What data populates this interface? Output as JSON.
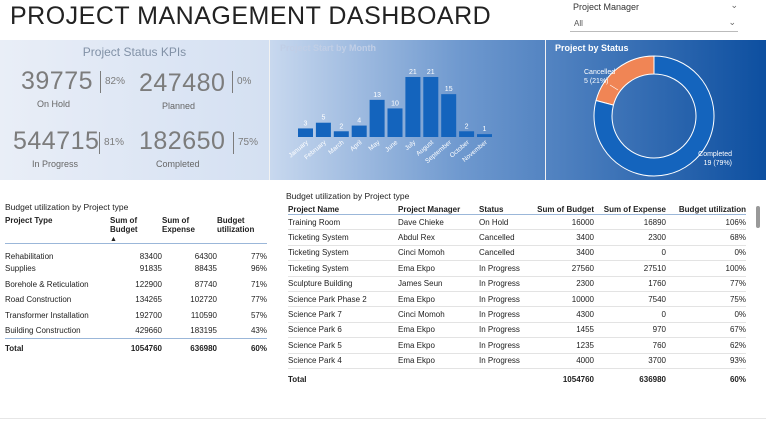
{
  "title": "PROJECT MANAGEMENT DASHBOARD",
  "slicer": {
    "label": "Project Manager",
    "value": "All"
  },
  "kpi": {
    "title": "Project Status KPIs",
    "items": [
      {
        "value": "39775",
        "pct": "82%",
        "label": "On Hold"
      },
      {
        "value": "247480",
        "pct": "0%",
        "label": "Planned"
      },
      {
        "value": "544715",
        "pct": "81%",
        "label": "In Progress"
      },
      {
        "value": "182650",
        "pct": "75%",
        "label": "Completed"
      }
    ]
  },
  "chart_data": [
    {
      "type": "bar",
      "title": "Project Start by Month",
      "categories": [
        "January",
        "February",
        "March",
        "April",
        "May",
        "June",
        "July",
        "August",
        "September",
        "October",
        "November"
      ],
      "values": [
        3,
        5,
        2,
        4,
        13,
        10,
        21,
        21,
        15,
        2,
        1
      ],
      "color": "#1464bd"
    },
    {
      "type": "pie",
      "title": "Project by Status",
      "slices": [
        {
          "name": "Cancelled",
          "value": 5,
          "label": "5 (21%)",
          "color": "#f08555"
        },
        {
          "name": "Completed",
          "value": 19,
          "label": "19 (79%)",
          "color": "#1464bd"
        }
      ]
    }
  ],
  "table1": {
    "title": "Budget utilization by Project type",
    "headers": [
      "Project Type",
      "Sum of Budget",
      "Sum of Expense",
      "Budget utilization"
    ],
    "rows": [
      [
        "Rehabilitation",
        "83400",
        "64300",
        "77%"
      ],
      [
        "Supplies",
        "91835",
        "88435",
        "96%"
      ],
      [
        "Borehole & Reticulation",
        "122900",
        "87740",
        "71%"
      ],
      [
        "Road Construction",
        "134265",
        "102720",
        "77%"
      ],
      [
        "Transformer Installation",
        "192700",
        "110590",
        "57%"
      ],
      [
        "Building Construction",
        "429660",
        "183195",
        "43%"
      ]
    ],
    "total": [
      "Total",
      "1054760",
      "636980",
      "60%"
    ]
  },
  "table2": {
    "title": "Budget utilization by Project type",
    "headers": [
      "Project Name",
      "Project Manager",
      "Status",
      "Sum of Budget",
      "Sum of Expense",
      "Budget utilization"
    ],
    "rows": [
      [
        "Training Room",
        "Dave Chieke",
        "On Hold",
        "16000",
        "16890",
        "106%"
      ],
      [
        "Ticketing System",
        "Abdul Rex",
        "Cancelled",
        "3400",
        "2300",
        "68%"
      ],
      [
        "Ticketing System",
        "Cinci Momoh",
        "Cancelled",
        "3400",
        "0",
        "0%"
      ],
      [
        "Ticketing System",
        "Ema Ekpo",
        "In Progress",
        "27560",
        "27510",
        "100%"
      ],
      [
        "Sculpture Building",
        "James Seun",
        "In Progress",
        "2300",
        "1760",
        "77%"
      ],
      [
        "Science Park Phase 2",
        "Ema Ekpo",
        "In Progress",
        "10000",
        "7540",
        "75%"
      ],
      [
        "Science Park 7",
        "Cinci Momoh",
        "In Progress",
        "4300",
        "0",
        "0%"
      ],
      [
        "Science Park 6",
        "Ema Ekpo",
        "In Progress",
        "1455",
        "970",
        "67%"
      ],
      [
        "Science Park 5",
        "Ema Ekpo",
        "In Progress",
        "1235",
        "760",
        "62%"
      ],
      [
        "Science Park 4",
        "Ema Ekpo",
        "In Progress",
        "4000",
        "3700",
        "93%"
      ]
    ],
    "total": [
      "Total",
      "",
      "",
      "1054760",
      "636980",
      "60%"
    ]
  }
}
